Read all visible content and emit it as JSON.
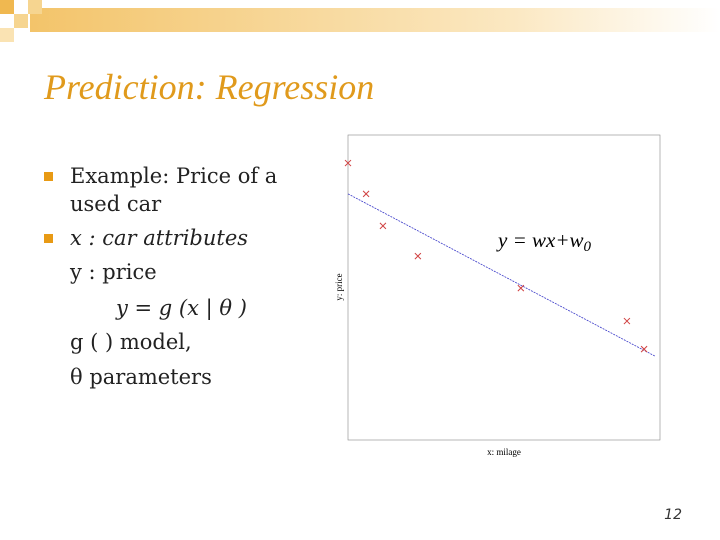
{
  "slide": {
    "title": "Prediction: Regression",
    "bullets": [
      "Example: Price of a used car",
      "x : car attributes"
    ],
    "lines": [
      "y : price",
      "y = g (x | θ )",
      "g ( ) model,",
      "θ parameters"
    ],
    "page_number": "12"
  },
  "chart_data": {
    "type": "scatter",
    "x_label": "x: milage",
    "y_label": "y: price",
    "annotation": {
      "text": "y = wx+w",
      "subscript": "0"
    },
    "x": [
      0,
      5.8,
      11.2,
      22.4,
      55.4,
      89.4,
      94.9
    ],
    "values": [
      90.8,
      80.7,
      70.2,
      60.3,
      49.8,
      39.0,
      29.8
    ],
    "color": "#d04040",
    "fit": {
      "x": [
        0,
        98.4
      ],
      "values": [
        80.7,
        27.5
      ],
      "color": "#3a3ac8"
    },
    "xlim": [
      0,
      100
    ],
    "ylim": [
      0,
      100
    ]
  }
}
